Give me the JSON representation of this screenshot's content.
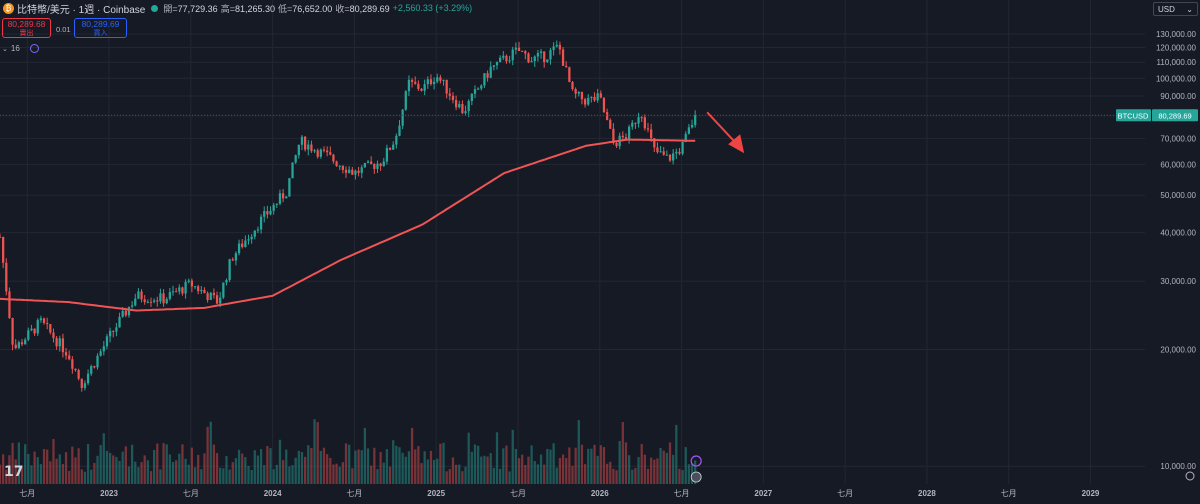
{
  "header": {
    "symbol_icon": "bitcoin-icon",
    "symbol_icon_glyph": "₿",
    "title": "比特幣/美元 · 1週 · Coinbase",
    "open_label": "開=",
    "open_value": "77,729.36",
    "high_label": "高=",
    "high_value": "81,265.30",
    "low_label": "低=",
    "low_value": "76,652.00",
    "close_label": "收=",
    "close_value": "80,289.69",
    "change": "+2,560.33 (+3.29%)"
  },
  "trade": {
    "sell_price": "80,289.68",
    "sell_label": "賣出",
    "spread": "0.01",
    "buy_price": "80,289.69",
    "buy_label": "買入"
  },
  "indicators": {
    "collapse_caret": "⌄",
    "count": "16"
  },
  "currency": {
    "label": "USD",
    "caret": "⌄"
  },
  "colors": {
    "up": "#26a69a",
    "down": "#ef5350",
    "ma": "#f05454",
    "bg": "#161a25",
    "grid": "#232732",
    "axis_text": "#b2b5be",
    "arrow": "#ef4444"
  },
  "chart_data": {
    "type": "candlestick",
    "symbol_tag": "BTCUSD",
    "last_price": 80289.69,
    "last_price_label": "80,289.69",
    "y_scale": "log",
    "ylim": [
      9000,
      138000
    ],
    "y_ticks": [
      10000,
      20000,
      30000,
      40000,
      50000,
      60000,
      70000,
      80000,
      90000,
      100000,
      110000,
      120000,
      130000
    ],
    "y_tick_labels": [
      "10,000.00",
      "20,000.00",
      "30,000.00",
      "40,000.00",
      "50,000.00",
      "60,000.00",
      "70,000.00",
      "80,000.00",
      "90,000.00",
      "100,000.00",
      "110,000.00",
      "120,000.00",
      "130,000.00"
    ],
    "x_ticks": [
      "2022-07",
      "2023-01",
      "2023-07",
      "2024-01",
      "2024-07",
      "2025-01",
      "2025-07",
      "2026-01",
      "2026-07",
      "2027-01",
      "2027-07",
      "2028-01",
      "2028-07",
      "2029-01"
    ],
    "x_tick_labels": [
      "七月",
      "2023",
      "七月",
      "2024",
      "七月",
      "2025",
      "七月",
      "2026",
      "七月",
      "2027",
      "七月",
      "2028",
      "七月",
      "2029"
    ],
    "xlim": [
      "2022-05",
      "2029-05"
    ],
    "close_anchors": [
      [
        "2022-05",
        39000
      ],
      [
        "2022-06",
        20000
      ],
      [
        "2022-08",
        23500
      ],
      [
        "2022-10",
        19500
      ],
      [
        "2022-11",
        16300
      ],
      [
        "2023-01",
        21500
      ],
      [
        "2023-03",
        27500
      ],
      [
        "2023-05",
        27000
      ],
      [
        "2023-07",
        29500
      ],
      [
        "2023-09",
        26500
      ],
      [
        "2023-10",
        34500
      ],
      [
        "2023-12",
        42500
      ],
      [
        "2024-02",
        51000
      ],
      [
        "2024-03",
        69000
      ],
      [
        "2024-05",
        63000
      ],
      [
        "2024-07",
        57000
      ],
      [
        "2024-08",
        59000
      ],
      [
        "2024-09",
        61000
      ],
      [
        "2024-10",
        70000
      ],
      [
        "2024-11",
        97000
      ],
      [
        "2024-12",
        94000
      ],
      [
        "2025-01",
        102000
      ],
      [
        "2025-03",
        82000
      ],
      [
        "2025-04",
        93000
      ],
      [
        "2025-05",
        106000
      ],
      [
        "2025-07",
        118000
      ],
      [
        "2025-08",
        112000
      ],
      [
        "2025-09",
        114000
      ],
      [
        "2025-10",
        121000
      ],
      [
        "2025-11",
        91000
      ],
      [
        "2025-12",
        87500
      ],
      [
        "2026-01",
        89000
      ],
      [
        "2026-02",
        68000
      ],
      [
        "2026-03",
        71000
      ],
      [
        "2026-04",
        83000
      ],
      [
        "2026-05",
        65000
      ],
      [
        "2026-06",
        62000
      ],
      [
        "2026-07",
        66000
      ],
      [
        "2026-08",
        80289.69
      ]
    ],
    "moving_average": {
      "anchors": [
        [
          "2022-05",
          27000
        ],
        [
          "2022-10",
          26500
        ],
        [
          "2023-03",
          25200
        ],
        [
          "2023-08",
          25600
        ],
        [
          "2024-01",
          27500
        ],
        [
          "2024-06",
          34000
        ],
        [
          "2024-12",
          42000
        ],
        [
          "2025-06",
          57000
        ],
        [
          "2025-12",
          67000
        ],
        [
          "2026-03",
          69500
        ],
        [
          "2026-08",
          69000
        ]
      ]
    },
    "volume_max_ratio": 1.0
  }
}
